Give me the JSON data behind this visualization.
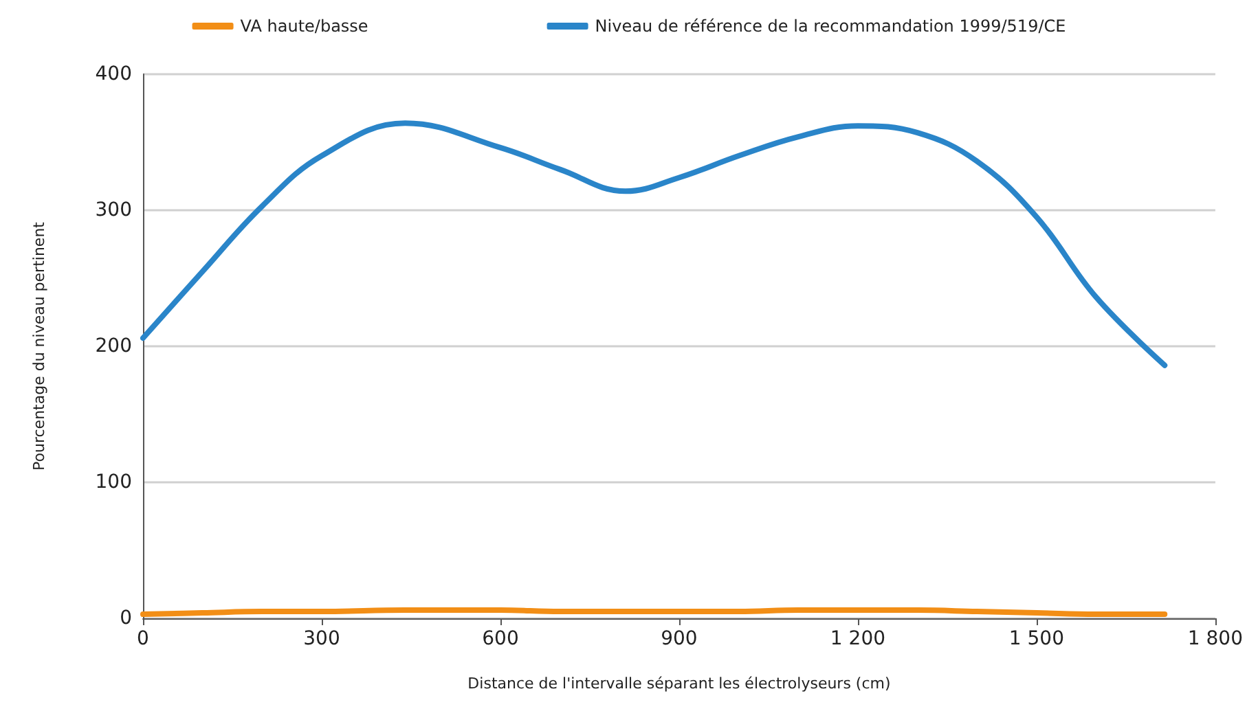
{
  "chart_data": {
    "type": "line",
    "xlabel": "Distance de l'intervalle séparant les électrolyseurs (cm)",
    "ylabel": "Pourcentage du niveau pertinent",
    "x": [
      0,
      100,
      200,
      300,
      440,
      600,
      700,
      810,
      900,
      1000,
      1100,
      1200,
      1300,
      1400,
      1500,
      1600,
      1715
    ],
    "series": [
      {
        "name": "VA haute/basse",
        "color": "#f28e16",
        "values": [
          3,
          4,
          5,
          5,
          6,
          6,
          5,
          5,
          5,
          5,
          6,
          6,
          6,
          5,
          4,
          3,
          3
        ]
      },
      {
        "name": "Niveau de référence de la recommandation 1999/519/CE",
        "color": "#2a85c9",
        "values": [
          206,
          255,
          303,
          340,
          364,
          346,
          330,
          314,
          324,
          340,
          354,
          362,
          357,
          336,
          295,
          236,
          186
        ]
      }
    ],
    "xlim": [
      0,
      1800
    ],
    "xticks": [
      0,
      300,
      600,
      900,
      {
        "value": 1200,
        "label": "1 200"
      },
      {
        "value": 1500,
        "label": "1 500"
      },
      {
        "value": 1800,
        "label": "1 800"
      }
    ],
    "ylim": [
      0,
      400
    ],
    "yticks": [
      0,
      100,
      200,
      300,
      400
    ],
    "grid": "y",
    "legend": "top",
    "marker": "none",
    "line_style": "solid"
  }
}
